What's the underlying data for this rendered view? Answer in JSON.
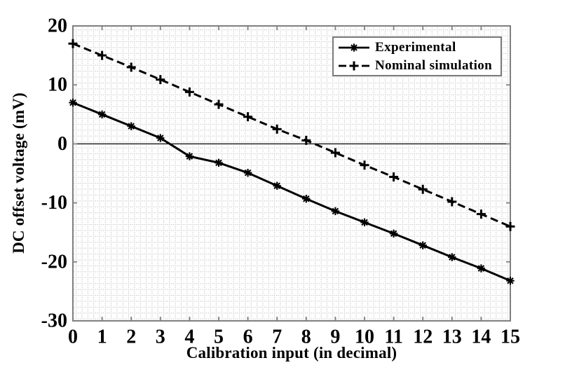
{
  "figure": {
    "background": "#ffffff",
    "frame_color": "#7f7f7f",
    "tick_color": "#7f7f7f",
    "grid_dot_color": "#b9b9b9",
    "data_color": "#000000",
    "legend_border_color": "#7a7a7a"
  },
  "chart_data": {
    "type": "line",
    "title": "",
    "xlabel": "Calibration input (in decimal)",
    "ylabel": "DC offset voltage (mV)",
    "xlim": [
      0,
      15
    ],
    "ylim": [
      -30,
      20
    ],
    "x_ticks": [
      0,
      1,
      2,
      3,
      4,
      5,
      6,
      7,
      8,
      9,
      10,
      11,
      12,
      13,
      14,
      15
    ],
    "y_ticks": [
      20,
      10,
      0,
      -10,
      -20,
      -30
    ],
    "grid": "dotted minor grid",
    "zero_line": true,
    "legend_position": "top-right",
    "x": [
      0,
      1,
      2,
      3,
      4,
      5,
      6,
      7,
      8,
      9,
      10,
      11,
      12,
      13,
      14,
      15
    ],
    "series": [
      {
        "name": "Experimental",
        "line_style": "solid",
        "marker": "asterisk",
        "color": "#000000",
        "values": [
          7,
          5,
          3,
          1,
          -2.1,
          -3.2,
          -4.9,
          -7.1,
          -9.3,
          -11.4,
          -13.3,
          -15.2,
          -17.2,
          -19.2,
          -21.1,
          -23.2
        ]
      },
      {
        "name": "Nominal simulation",
        "line_style": "dashed",
        "marker": "plus",
        "color": "#000000",
        "values": [
          17,
          15,
          13,
          10.9,
          8.8,
          6.7,
          4.6,
          2.5,
          0.6,
          -1.5,
          -3.6,
          -5.6,
          -7.7,
          -9.8,
          -11.9,
          -14
        ]
      }
    ]
  }
}
